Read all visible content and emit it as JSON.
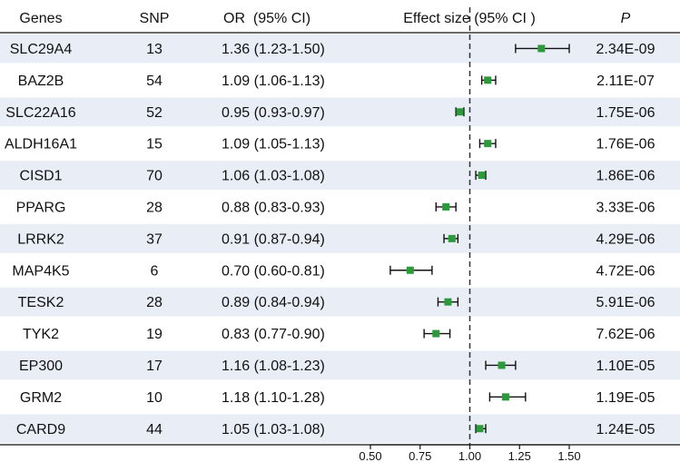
{
  "headers": {
    "genes": "Genes",
    "snp": "SNP",
    "or": "OR  (95% CI)",
    "effect": "Effect size (95% CI )",
    "p": "P"
  },
  "chart_data": {
    "type": "forest",
    "title": "",
    "xlabel": "",
    "ylabel": "",
    "xlim": [
      0.5,
      1.5
    ],
    "reference_line": 1.0,
    "xticks": [
      0.5,
      0.75,
      1.0,
      1.25,
      1.5
    ],
    "xtick_labels": [
      "0.50",
      "0.75",
      "1.00",
      "1.25",
      "1.50"
    ],
    "rows": [
      {
        "gene": "SLC29A4",
        "snp": "13",
        "or_text": "1.36 (1.23-1.50)",
        "or": 1.36,
        "lo": 1.23,
        "hi": 1.5,
        "p": "2.34E-09"
      },
      {
        "gene": "BAZ2B",
        "snp": "54",
        "or_text": "1.09 (1.06-1.13)",
        "or": 1.09,
        "lo": 1.06,
        "hi": 1.13,
        "p": "2.11E-07"
      },
      {
        "gene": "SLC22A16",
        "snp": "52",
        "or_text": "0.95 (0.93-0.97)",
        "or": 0.95,
        "lo": 0.93,
        "hi": 0.97,
        "p": "1.75E-06"
      },
      {
        "gene": "ALDH16A1",
        "snp": "15",
        "or_text": "1.09 (1.05-1.13)",
        "or": 1.09,
        "lo": 1.05,
        "hi": 1.13,
        "p": "1.76E-06"
      },
      {
        "gene": "CISD1",
        "snp": "70",
        "or_text": "1.06 (1.03-1.08)",
        "or": 1.06,
        "lo": 1.03,
        "hi": 1.08,
        "p": "1.86E-06"
      },
      {
        "gene": "PPARG",
        "snp": "28",
        "or_text": "0.88 (0.83-0.93)",
        "or": 0.88,
        "lo": 0.83,
        "hi": 0.93,
        "p": "3.33E-06"
      },
      {
        "gene": "LRRK2",
        "snp": "37",
        "or_text": "0.91 (0.87-0.94)",
        "or": 0.91,
        "lo": 0.87,
        "hi": 0.94,
        "p": "4.29E-06"
      },
      {
        "gene": "MAP4K5",
        "snp": "6",
        "or_text": "0.70 (0.60-0.81)",
        "or": 0.7,
        "lo": 0.6,
        "hi": 0.81,
        "p": "4.72E-06"
      },
      {
        "gene": "TESK2",
        "snp": "28",
        "or_text": "0.89 (0.84-0.94)",
        "or": 0.89,
        "lo": 0.84,
        "hi": 0.94,
        "p": "5.91E-06"
      },
      {
        "gene": "TYK2",
        "snp": "19",
        "or_text": "0.83 (0.77-0.90)",
        "or": 0.83,
        "lo": 0.77,
        "hi": 0.9,
        "p": "7.62E-06"
      },
      {
        "gene": "EP300",
        "snp": "17",
        "or_text": "1.16 (1.08-1.23)",
        "or": 1.16,
        "lo": 1.08,
        "hi": 1.23,
        "p": "1.10E-05"
      },
      {
        "gene": "GRM2",
        "snp": "10",
        "or_text": "1.18 (1.10-1.28)",
        "or": 1.18,
        "lo": 1.1,
        "hi": 1.28,
        "p": "1.19E-05"
      },
      {
        "gene": "CARD9",
        "snp": "44",
        "or_text": "1.05 (1.03-1.08)",
        "or": 1.05,
        "lo": 1.03,
        "hi": 1.08,
        "p": "1.24E-05"
      }
    ]
  },
  "colors": {
    "stripe": "#e9eef6",
    "marker": "#2a9a3a",
    "line": "#111111"
  }
}
